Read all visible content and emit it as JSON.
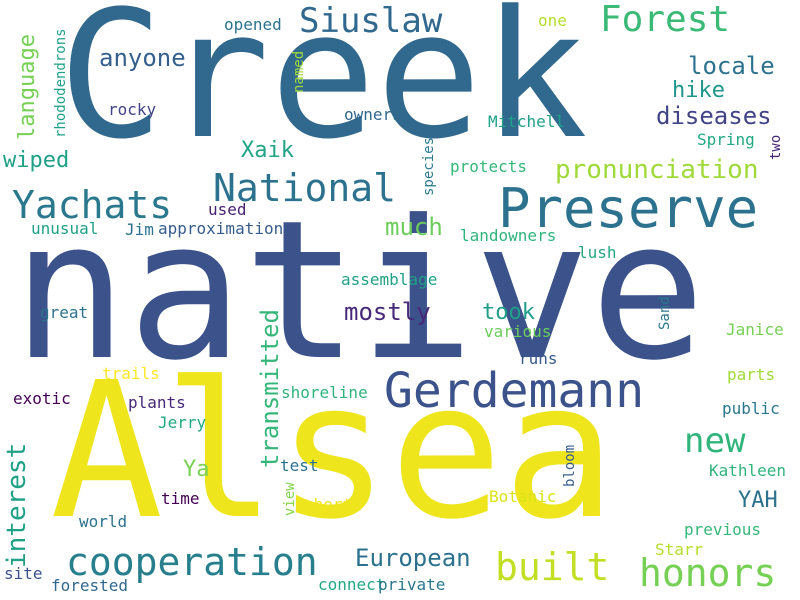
{
  "palette": {
    "purple": "#46327e",
    "indigo": "#365c8d",
    "blue": "#277f8e",
    "teal": "#1fa187",
    "green": "#4ac16d",
    "lime": "#a0da39",
    "yellow": "#fde725"
  },
  "words": [
    {
      "text": "native",
      "color": "#3b528b"
    },
    {
      "text": "Creek",
      "color": "#31688e"
    },
    {
      "text": "Alsea",
      "color": "#efe51c"
    },
    {
      "text": "Preserve",
      "color": "#2c728e"
    },
    {
      "text": "Gerdemann",
      "color": "#3b528b"
    },
    {
      "text": "National",
      "color": "#2c728e"
    },
    {
      "text": "Yachats",
      "color": "#2a788e"
    },
    {
      "text": "cooperation",
      "color": "#277f8e"
    },
    {
      "text": "built",
      "color": "#c2df23"
    },
    {
      "text": "honors",
      "color": "#75d054"
    },
    {
      "text": "Siuslaw",
      "color": "#31688e"
    },
    {
      "text": "Forest",
      "color": "#3aba76"
    },
    {
      "text": "pronunciation",
      "color": "#a0da39"
    },
    {
      "text": "transmitted",
      "color": "#35b779"
    },
    {
      "text": "new",
      "color": "#2fb47c"
    },
    {
      "text": "interest",
      "color": "#1fa187"
    },
    {
      "text": "European",
      "color": "#2c728e"
    },
    {
      "text": "YAH",
      "color": "#2c728e"
    },
    {
      "text": "language",
      "color": "#75d054"
    },
    {
      "text": "anyone",
      "color": "#355f8d"
    },
    {
      "text": "locale",
      "color": "#2c728e"
    },
    {
      "text": "hike",
      "color": "#1f968b"
    },
    {
      "text": "diseases",
      "color": "#414487"
    },
    {
      "text": "wiped",
      "color": "#1fa187"
    },
    {
      "text": "Xaik",
      "color": "#20a486"
    },
    {
      "text": "much",
      "color": "#6ccd5a"
    },
    {
      "text": "mostly",
      "color": "#482878"
    },
    {
      "text": "took",
      "color": "#1f9e89"
    },
    {
      "text": "Ya",
      "color": "#7ad151"
    },
    {
      "text": "rhododendrons",
      "color": "#1fa187"
    },
    {
      "text": "rocky",
      "color": "#414487"
    },
    {
      "text": "opened",
      "color": "#2c728e"
    },
    {
      "text": "named",
      "color": "#a0da39"
    },
    {
      "text": "one",
      "color": "#b5de2b"
    },
    {
      "text": "owners",
      "color": "#31688e"
    },
    {
      "text": "Mitchell",
      "color": "#1fa187"
    },
    {
      "text": "Spring",
      "color": "#22a884"
    },
    {
      "text": "two",
      "color": "#482878"
    },
    {
      "text": "species",
      "color": "#2a788e"
    },
    {
      "text": "protects",
      "color": "#35b779"
    },
    {
      "text": "used",
      "color": "#481f70"
    },
    {
      "text": "unusual",
      "color": "#1fa187"
    },
    {
      "text": "Jim",
      "color": "#2c728e"
    },
    {
      "text": "approximation",
      "color": "#365c8d"
    },
    {
      "text": "landowners",
      "color": "#2fb47c"
    },
    {
      "text": "lush",
      "color": "#22a884"
    },
    {
      "text": "assemblage",
      "color": "#1fa187"
    },
    {
      "text": "Sand",
      "color": "#2a788e"
    },
    {
      "text": "great",
      "color": "#2c728e"
    },
    {
      "text": "various",
      "color": "#6ccd5a"
    },
    {
      "text": "Janice",
      "color": "#75d054"
    },
    {
      "text": "runs",
      "color": "#38598c"
    },
    {
      "text": "trails",
      "color": "#fde725"
    },
    {
      "text": "parts",
      "color": "#a0da39"
    },
    {
      "text": "exotic",
      "color": "#440154"
    },
    {
      "text": "plants",
      "color": "#482878"
    },
    {
      "text": "shoreline",
      "color": "#2fb47c"
    },
    {
      "text": "public",
      "color": "#2a788e"
    },
    {
      "text": "Jerry",
      "color": "#22a884"
    },
    {
      "text": "test",
      "color": "#2c728e"
    },
    {
      "text": "Kathleen",
      "color": "#2fb47c"
    },
    {
      "text": "time",
      "color": "#440154"
    },
    {
      "text": "view",
      "color": "#84d44b"
    },
    {
      "text": "bloom",
      "color": "#365c8d"
    },
    {
      "text": "short",
      "color": "#efe51c"
    },
    {
      "text": "Botanic",
      "color": "#dde318"
    },
    {
      "text": "world",
      "color": "#2c728e"
    },
    {
      "text": "previous",
      "color": "#35b779"
    },
    {
      "text": "Starr",
      "color": "#b5de2b"
    },
    {
      "text": "site",
      "color": "#3b528b"
    },
    {
      "text": "forested",
      "color": "#31688e"
    },
    {
      "text": "connect",
      "color": "#22a884"
    },
    {
      "text": "private",
      "color": "#2a788e"
    }
  ]
}
